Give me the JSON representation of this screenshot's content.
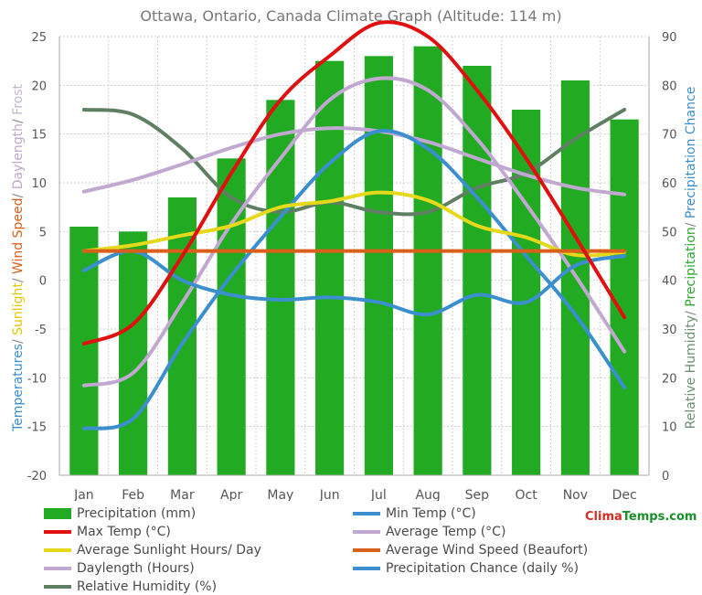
{
  "chart_data": {
    "type": "bar",
    "title": "Ottawa, Ontario, Canada Climate Graph (Altitude: 114 m)",
    "categories": [
      "Jan",
      "Feb",
      "Mar",
      "Apr",
      "May",
      "Jun",
      "Jul",
      "Aug",
      "Sep",
      "Oct",
      "Nov",
      "Dec"
    ],
    "left_axis": {
      "label_parts": [
        {
          "text": "Temperatures",
          "color": "#3b8fcf"
        },
        {
          "text": "/ ",
          "color": "#888888"
        },
        {
          "text": "Sunlight",
          "color": "#e3c400"
        },
        {
          "text": "/ ",
          "color": "#888888"
        },
        {
          "text": "Wind Speed",
          "color": "#d9601a"
        },
        {
          "text": "/ ",
          "color": "#888888"
        },
        {
          "text": "Daylength",
          "color": "#bfa6cc"
        },
        {
          "text": "/ ",
          "color": "#888888"
        },
        {
          "text": "Frost",
          "color": "#c4b6cc"
        }
      ],
      "ylim": [
        -20,
        25
      ],
      "ticks": [
        -20,
        -15,
        -10,
        -5,
        0,
        5,
        10,
        15,
        20,
        25
      ]
    },
    "right_axis": {
      "label_parts": [
        {
          "text": "Relative Humidity",
          "color": "#6b8f73"
        },
        {
          "text": "/ ",
          "color": "#888888"
        },
        {
          "text": "Precipitation",
          "color": "#2ea82e"
        },
        {
          "text": "/ ",
          "color": "#888888"
        },
        {
          "text": "Precipitation Chance",
          "color": "#3b8fcf"
        }
      ],
      "ylim": [
        0,
        90
      ],
      "ticks": [
        0,
        10,
        20,
        30,
        40,
        50,
        60,
        70,
        80,
        90
      ]
    },
    "grid": true,
    "series": [
      {
        "name": "Precipitation (mm)",
        "kind": "bar",
        "axis": "right",
        "color": "#22aa22",
        "values": [
          51,
          50,
          57,
          65,
          77,
          85,
          86,
          88,
          84,
          75,
          81,
          73
        ]
      },
      {
        "name": "Min Temp (°C)",
        "kind": "line",
        "axis": "left",
        "color": "#3b8fcf",
        "values": [
          -15.2,
          -14.2,
          -6.5,
          0.5,
          6.5,
          12,
          15.3,
          13.5,
          8.5,
          2.5,
          -3.5,
          -11
        ]
      },
      {
        "name": "Max Temp (°C)",
        "kind": "line",
        "axis": "left",
        "color": "#e01010",
        "values": [
          -6.5,
          -4.5,
          2.5,
          11,
          18.5,
          23,
          26.4,
          25,
          19.5,
          12.5,
          4.5,
          -3.8
        ]
      },
      {
        "name": "Average Temp (°C)",
        "kind": "line",
        "axis": "left",
        "color": "#c0a8d0",
        "values": [
          -10.8,
          -9.5,
          -2.3,
          5.8,
          12.5,
          18.5,
          20.7,
          19.5,
          14.5,
          7.8,
          0.5,
          -7.3
        ]
      },
      {
        "name": "Average Sunlight Hours/ Day",
        "kind": "line",
        "axis": "left",
        "color": "#e6d81a",
        "values": [
          3.0,
          3.6,
          4.6,
          5.6,
          7.5,
          8.1,
          9.0,
          8.2,
          5.6,
          4.4,
          2.6,
          2.9
        ]
      },
      {
        "name": "Average Wind Speed (Beaufort)",
        "kind": "line",
        "axis": "left",
        "color": "#d9601a",
        "values": [
          3,
          3,
          3,
          3,
          3,
          3,
          3,
          3,
          3,
          3,
          3,
          3
        ]
      },
      {
        "name": "Daylength (Hours)",
        "kind": "line",
        "axis": "left",
        "color": "#c0a8d0",
        "values": [
          9.1,
          10.3,
          11.9,
          13.6,
          15.0,
          15.6,
          15.3,
          14.2,
          12.5,
          10.8,
          9.5,
          8.8
        ]
      },
      {
        "name": "Precipitation Chance (daily %)",
        "kind": "line",
        "axis": "right",
        "color": "#3b8fcf",
        "values": [
          42,
          46,
          40,
          37,
          36,
          36.5,
          35.5,
          33,
          37,
          35.5,
          43,
          45
        ]
      },
      {
        "name": "Relative Humidity (%)",
        "kind": "line",
        "axis": "right",
        "color": "#5e7f62",
        "values": [
          75,
          74,
          67,
          57,
          54,
          56,
          54,
          54,
          59,
          62,
          69,
          75
        ]
      }
    ]
  },
  "legend": [
    {
      "label": "Precipitation (mm)",
      "color": "#22aa22",
      "shape": "bar"
    },
    {
      "label": "Min Temp (°C)",
      "color": "#3b8fcf",
      "shape": "line"
    },
    {
      "label": "Max Temp (°C)",
      "color": "#e01010",
      "shape": "line"
    },
    {
      "label": "Average Temp (°C)",
      "color": "#c0a8d0",
      "shape": "line"
    },
    {
      "label": "Average Sunlight Hours/ Day",
      "color": "#e6d81a",
      "shape": "line"
    },
    {
      "label": "Average Wind Speed (Beaufort)",
      "color": "#d9601a",
      "shape": "line"
    },
    {
      "label": "Daylength (Hours)",
      "color": "#c0a8d0",
      "shape": "line"
    },
    {
      "label": "Precipitation Chance (daily %)",
      "color": "#3b8fcf",
      "shape": "line"
    },
    {
      "label": "Relative Humidity (%)",
      "color": "#5e7f62",
      "shape": "line"
    }
  ],
  "brand": {
    "part1": "Clima",
    "part2": "Temps.com"
  }
}
